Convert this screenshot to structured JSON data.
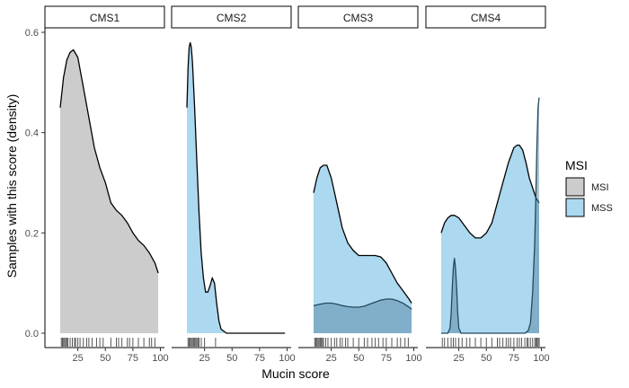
{
  "chart_data": {
    "type": "area",
    "xlabel": "Mucin score",
    "ylabel": "Samples with this score (density)",
    "xlim": [
      0,
      100
    ],
    "ylim": [
      0,
      0.6
    ],
    "x_ticks": [
      25,
      50,
      75,
      100
    ],
    "y_ticks": [
      0.0,
      0.2,
      0.4,
      0.6
    ],
    "y_tick_labels": [
      "0.0",
      "0.2",
      "0.4",
      "0.6"
    ],
    "grid": false,
    "legend": {
      "title": "MSI",
      "position": "right",
      "entries": [
        {
          "name": "MSI",
          "color": "#cccccc"
        },
        {
          "name": "MSS",
          "color": "#acd8f0"
        }
      ]
    },
    "panels": [
      {
        "label": "CMS1",
        "series": [
          {
            "name": "MSI",
            "color": "#cccccc",
            "opacity": 1.0,
            "x": [
              9,
              12,
              15,
              18,
              21,
              25,
              30,
              35,
              40,
              45,
              50,
              55,
              60,
              65,
              70,
              75,
              80,
              85,
              90,
              95,
              98
            ],
            "y": [
              0.45,
              0.51,
              0.545,
              0.56,
              0.565,
              0.55,
              0.49,
              0.43,
              0.37,
              0.33,
              0.3,
              0.26,
              0.245,
              0.235,
              0.22,
              0.2,
              0.185,
              0.175,
              0.16,
              0.14,
              0.12
            ]
          }
        ],
        "rug": [
          10,
          11,
          12,
          13,
          14,
          15,
          16,
          18,
          20,
          22,
          23,
          25,
          27,
          30,
          33,
          35,
          38,
          42,
          45,
          48,
          55,
          60,
          62,
          65,
          70,
          72,
          75,
          80,
          85,
          90,
          92,
          95
        ]
      },
      {
        "label": "CMS2",
        "series": [
          {
            "name": "MSS",
            "color": "#acd8f0",
            "opacity": 1.0,
            "x": [
              9,
              10,
              11,
              12,
              13,
              14,
              16,
              18,
              20,
              22,
              24,
              26,
              28,
              30,
              32,
              34,
              36,
              38,
              40,
              45,
              50,
              60,
              70,
              80,
              90,
              98
            ],
            "y": [
              0.45,
              0.53,
              0.57,
              0.58,
              0.57,
              0.54,
              0.45,
              0.34,
              0.24,
              0.16,
              0.11,
              0.082,
              0.082,
              0.095,
              0.11,
              0.1,
              0.06,
              0.025,
              0.008,
              0.0,
              0.0,
              0.0,
              0.0,
              0.0,
              0.0,
              0.0
            ]
          }
        ],
        "rug": [
          10,
          11,
          12,
          13,
          14,
          15,
          16,
          17,
          18,
          19,
          20,
          22,
          25,
          35
        ]
      },
      {
        "label": "CMS3",
        "series": [
          {
            "name": "MSS",
            "color": "#acd8f0",
            "opacity": 1.0,
            "x": [
              9,
              12,
              15,
              18,
              21,
              25,
              30,
              35,
              40,
              45,
              50,
              55,
              60,
              65,
              70,
              75,
              80,
              85,
              90,
              95,
              98
            ],
            "y": [
              0.28,
              0.31,
              0.33,
              0.335,
              0.335,
              0.31,
              0.26,
              0.21,
              0.18,
              0.165,
              0.155,
              0.155,
              0.155,
              0.155,
              0.152,
              0.14,
              0.12,
              0.1,
              0.085,
              0.07,
              0.06
            ]
          },
          {
            "name": "MSI",
            "color": "#4d7f99",
            "opacity": 0.45,
            "x": [
              9,
              15,
              20,
              25,
              30,
              35,
              40,
              45,
              50,
              55,
              60,
              65,
              70,
              75,
              80,
              85,
              90,
              95,
              98
            ],
            "y": [
              0.055,
              0.058,
              0.06,
              0.06,
              0.058,
              0.055,
              0.053,
              0.052,
              0.052,
              0.054,
              0.058,
              0.062,
              0.066,
              0.068,
              0.068,
              0.065,
              0.06,
              0.053,
              0.048
            ]
          }
        ],
        "rug": [
          10,
          11,
          12,
          13,
          14,
          15,
          16,
          17,
          18,
          20,
          22,
          25,
          28,
          30,
          33,
          35,
          38,
          40,
          45,
          50,
          55,
          58,
          62,
          65,
          68,
          72,
          75,
          80,
          85,
          88,
          92,
          95
        ]
      },
      {
        "label": "CMS4",
        "series": [
          {
            "name": "MSS",
            "color": "#acd8f0",
            "opacity": 1.0,
            "x": [
              9,
              12,
              15,
              18,
              21,
              25,
              30,
              35,
              40,
              45,
              50,
              55,
              60,
              65,
              70,
              75,
              78,
              80,
              83,
              86,
              89,
              92,
              95,
              98
            ],
            "y": [
              0.2,
              0.22,
              0.23,
              0.235,
              0.235,
              0.23,
              0.215,
              0.2,
              0.19,
              0.19,
              0.2,
              0.22,
              0.26,
              0.3,
              0.34,
              0.37,
              0.375,
              0.375,
              0.365,
              0.34,
              0.31,
              0.29,
              0.27,
              0.26
            ]
          },
          {
            "name": "MSI",
            "color": "#4d7f99",
            "opacity": 0.45,
            "x": [
              9,
              15,
              17,
              18,
              19,
              20,
              21,
              22,
              23,
              24,
              25,
              27,
              30,
              40,
              50,
              60,
              70,
              80,
              85,
              88,
              90,
              92,
              94,
              95,
              96,
              97,
              98
            ],
            "y": [
              0.0,
              0.0,
              0.01,
              0.04,
              0.09,
              0.13,
              0.15,
              0.13,
              0.09,
              0.04,
              0.01,
              0.0,
              0.0,
              0.0,
              0.0,
              0.0,
              0.0,
              0.0,
              0.0,
              0.005,
              0.02,
              0.08,
              0.18,
              0.28,
              0.38,
              0.45,
              0.47
            ]
          }
        ],
        "rug": [
          10,
          12,
          15,
          18,
          20,
          22,
          25,
          28,
          32,
          35,
          40,
          45,
          50,
          55,
          60,
          62,
          65,
          68,
          70,
          72,
          75,
          78,
          80,
          82,
          85,
          87,
          88,
          90,
          92,
          94,
          95,
          96,
          97,
          98
        ]
      }
    ]
  }
}
